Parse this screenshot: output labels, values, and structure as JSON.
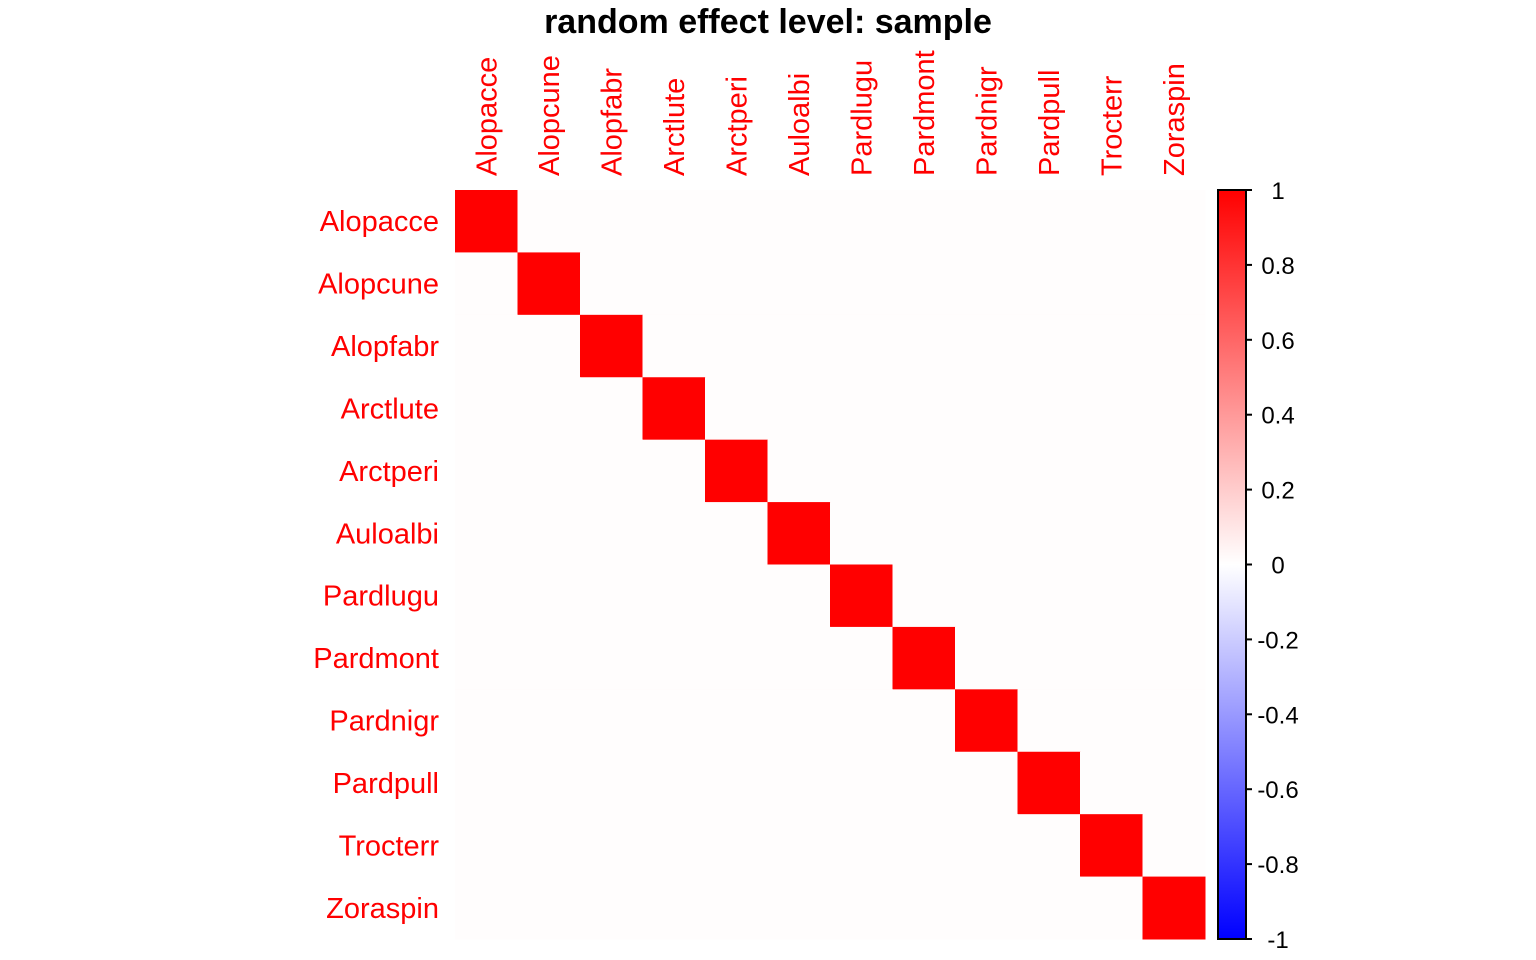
{
  "chart_data": {
    "type": "heatmap",
    "title": "random effect level: sample",
    "row_labels": [
      "Alopacce",
      "Alopcune",
      "Alopfabr",
      "Arctlute",
      "Arctperi",
      "Auloalbi",
      "Pardlugu",
      "Pardmont",
      "Pardnigr",
      "Pardpull",
      "Trocterr",
      "Zoraspin"
    ],
    "col_labels": [
      "Alopacce",
      "Alopcune",
      "Alopfabr",
      "Arctlute",
      "Arctperi",
      "Auloalbi",
      "Pardlugu",
      "Pardmont",
      "Pardnigr",
      "Pardpull",
      "Trocterr",
      "Zoraspin"
    ],
    "values": [
      [
        1,
        0,
        0,
        0,
        0,
        0,
        0,
        0,
        0,
        0,
        0,
        0
      ],
      [
        0,
        1,
        0,
        0,
        0,
        0,
        0,
        0,
        0,
        0,
        0,
        0
      ],
      [
        0,
        0,
        1,
        0,
        0,
        0,
        0,
        0,
        0,
        0,
        0,
        0
      ],
      [
        0,
        0,
        0,
        1,
        0,
        0,
        0,
        0,
        0,
        0,
        0,
        0
      ],
      [
        0,
        0,
        0,
        0,
        1,
        0,
        0,
        0,
        0,
        0,
        0,
        0
      ],
      [
        0,
        0,
        0,
        0,
        0,
        1,
        0,
        0,
        0,
        0,
        0,
        0
      ],
      [
        0,
        0,
        0,
        0,
        0,
        0,
        1,
        0,
        0,
        0,
        0,
        0
      ],
      [
        0,
        0,
        0,
        0,
        0,
        0,
        0,
        1,
        0,
        0,
        0,
        0
      ],
      [
        0,
        0,
        0,
        0,
        0,
        0,
        0,
        0,
        1,
        0,
        0,
        0
      ],
      [
        0,
        0,
        0,
        0,
        0,
        0,
        0,
        0,
        0,
        1,
        0,
        0
      ],
      [
        0,
        0,
        0,
        0,
        0,
        0,
        0,
        0,
        0,
        0,
        1,
        0
      ],
      [
        0,
        0,
        0,
        0,
        0,
        0,
        0,
        0,
        0,
        0,
        0,
        1
      ]
    ],
    "colorbar": {
      "range": [
        -1,
        1
      ],
      "ticks": [
        "1",
        "0.8",
        "0.6",
        "0.4",
        "0.2",
        "0",
        "-0.2",
        "-0.4",
        "-0.6",
        "-0.8",
        "-1"
      ],
      "tick_values": [
        1,
        0.8,
        0.6,
        0.4,
        0.2,
        0,
        -0.2,
        -0.4,
        -0.6,
        -0.8,
        -1
      ],
      "colors": {
        "low": "#0000ff",
        "mid": "#ffffff",
        "high": "#ff0000"
      }
    },
    "label_color": "#ff0000",
    "grid": false,
    "legend_position": "right"
  }
}
